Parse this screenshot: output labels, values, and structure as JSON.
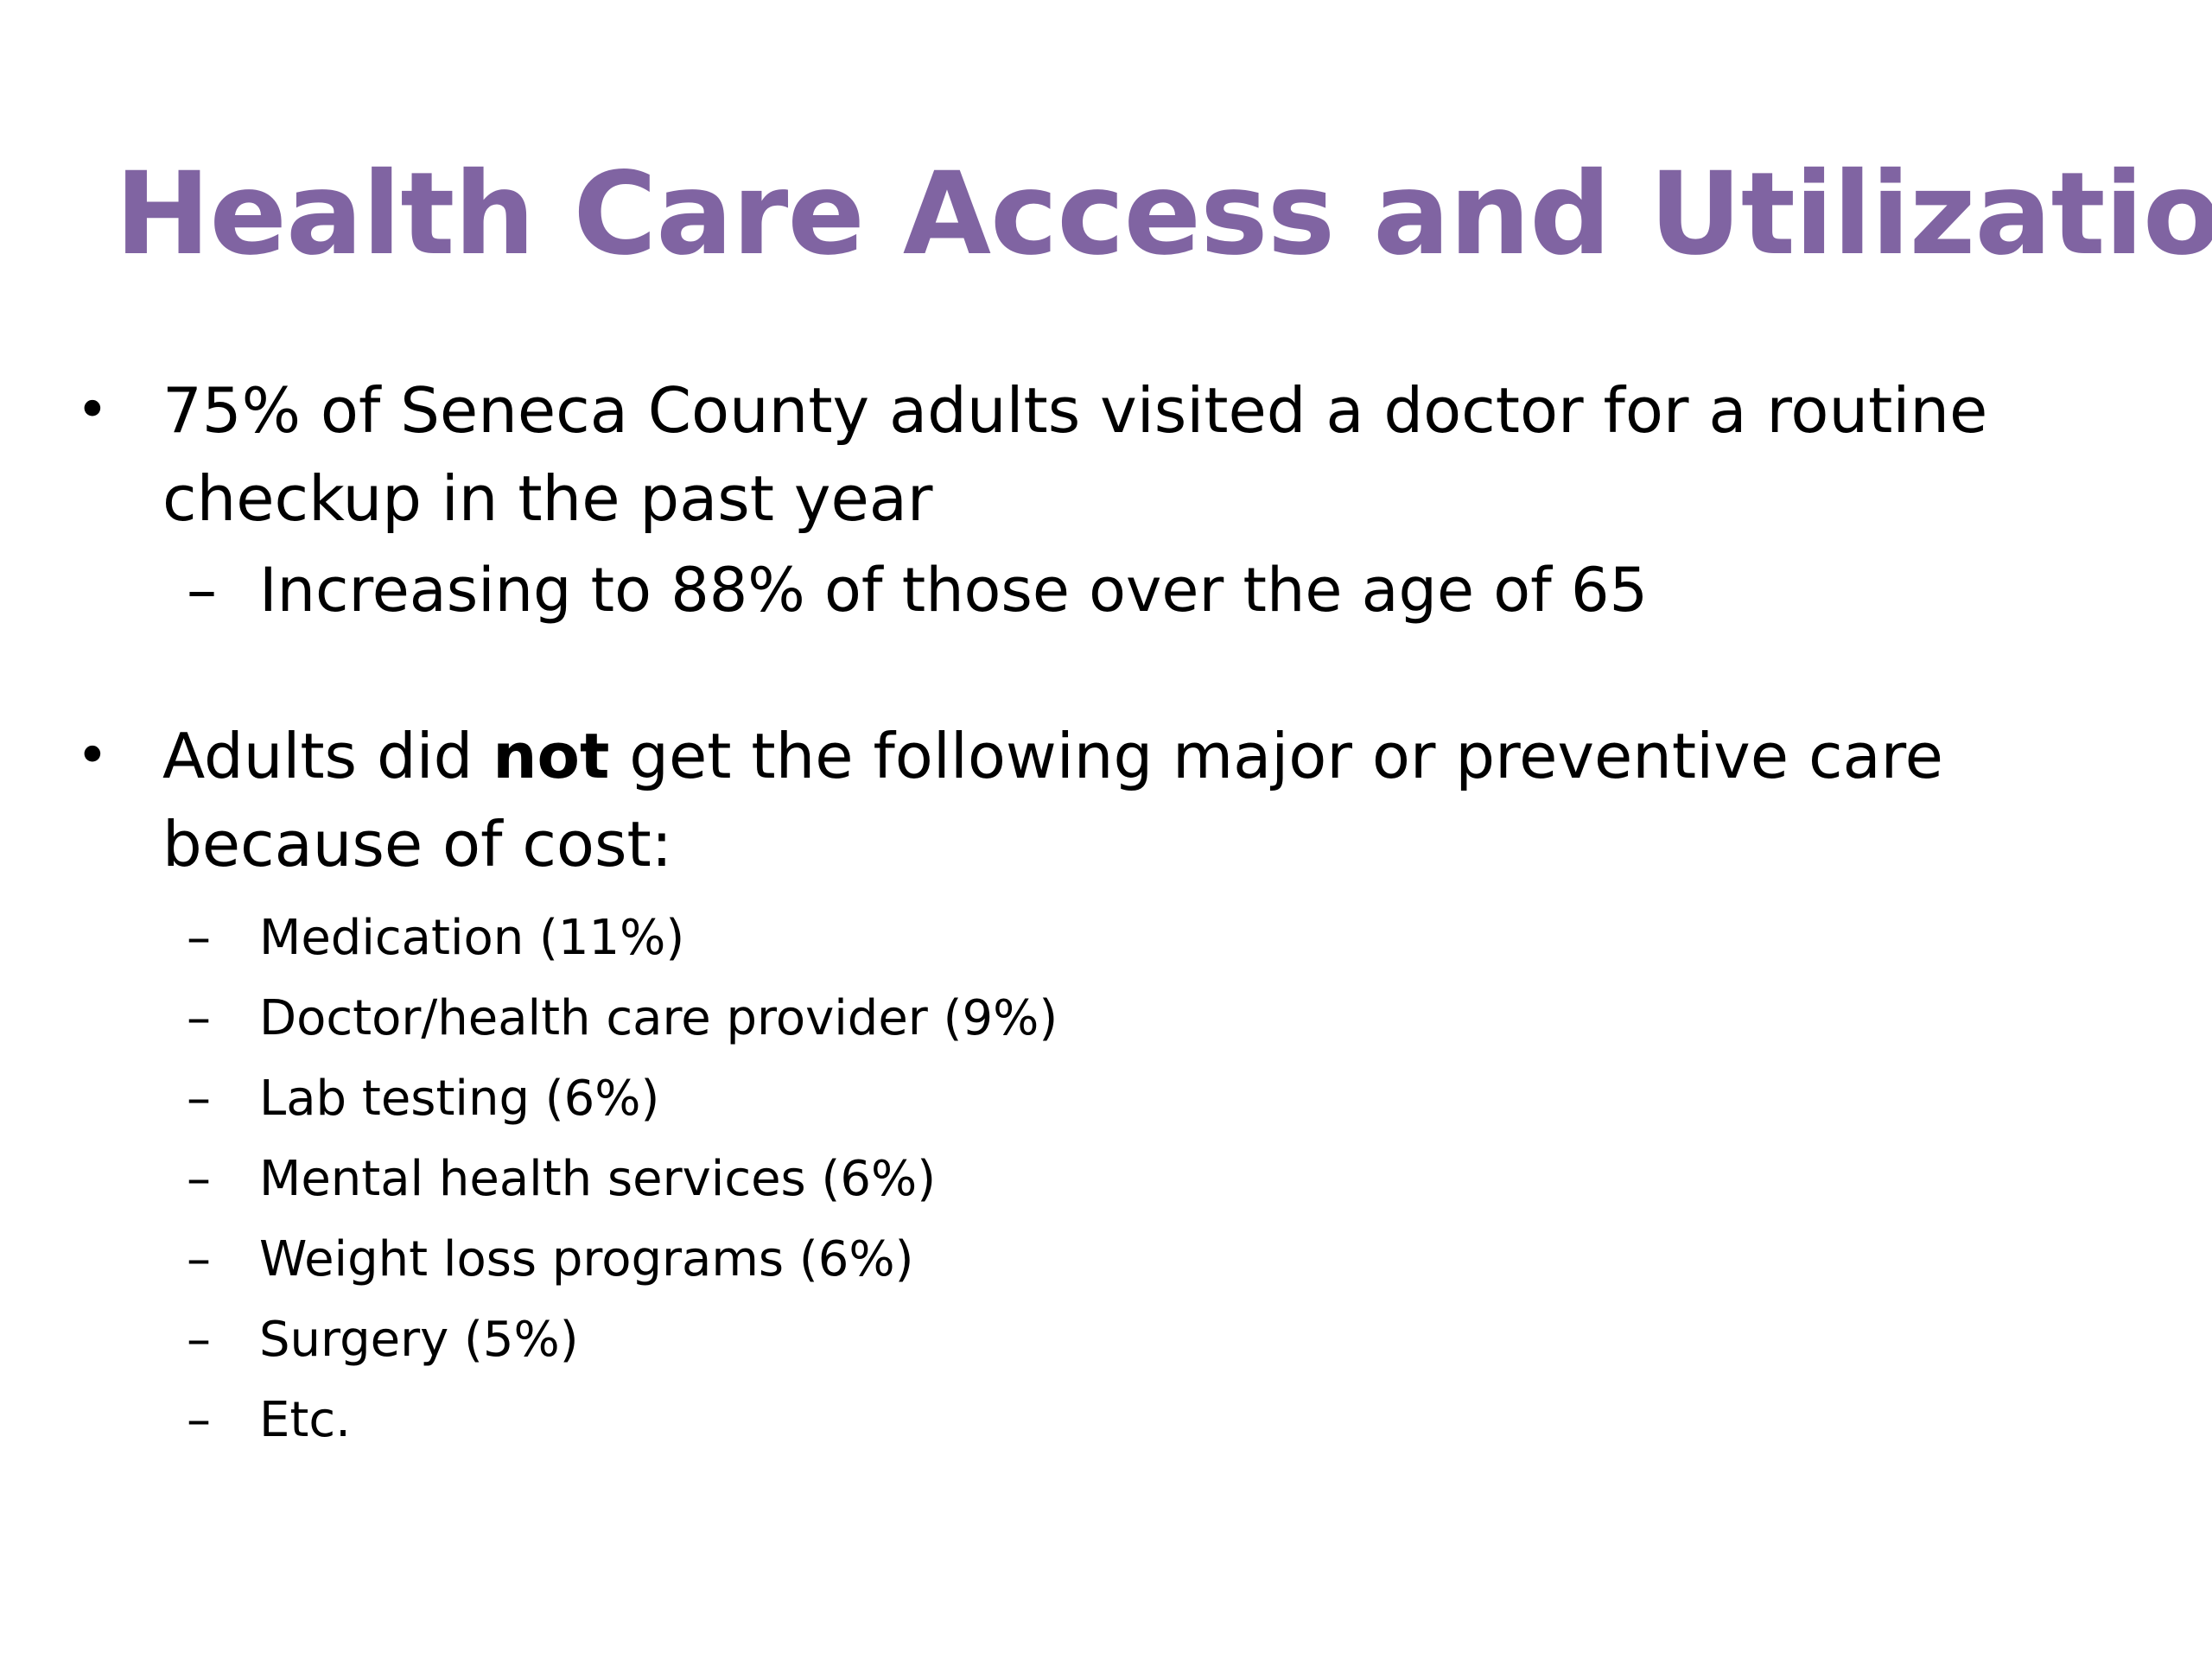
{
  "slide": {
    "title": "Health Care Access and Utilization",
    "title_color": "#8064a2",
    "bullets": [
      {
        "marker": "•",
        "text": "75% of Seneca County adults visited a doctor for a routine checkup in the past year",
        "subitems": [
          {
            "marker": "–",
            "text": "Increasing to 88% of those over the age of 65"
          }
        ]
      },
      {
        "marker": "•",
        "text_before": "Adults did ",
        "text_bold": "not",
        "text_after": " get the following major or preventive care because of cost:",
        "subitems": [
          {
            "marker": "–",
            "text": "Medication (11%)"
          },
          {
            "marker": "–",
            "text": "Doctor/health care provider (9%)"
          },
          {
            "marker": "–",
            "text": "Lab testing (6%)"
          },
          {
            "marker": "–",
            "text": "Mental health services (6%)"
          },
          {
            "marker": "–",
            "text": "Weight loss programs (6%)"
          },
          {
            "marker": "–",
            "text": "Surgery (5%)"
          },
          {
            "marker": "–",
            "text": "Etc."
          }
        ]
      }
    ]
  }
}
